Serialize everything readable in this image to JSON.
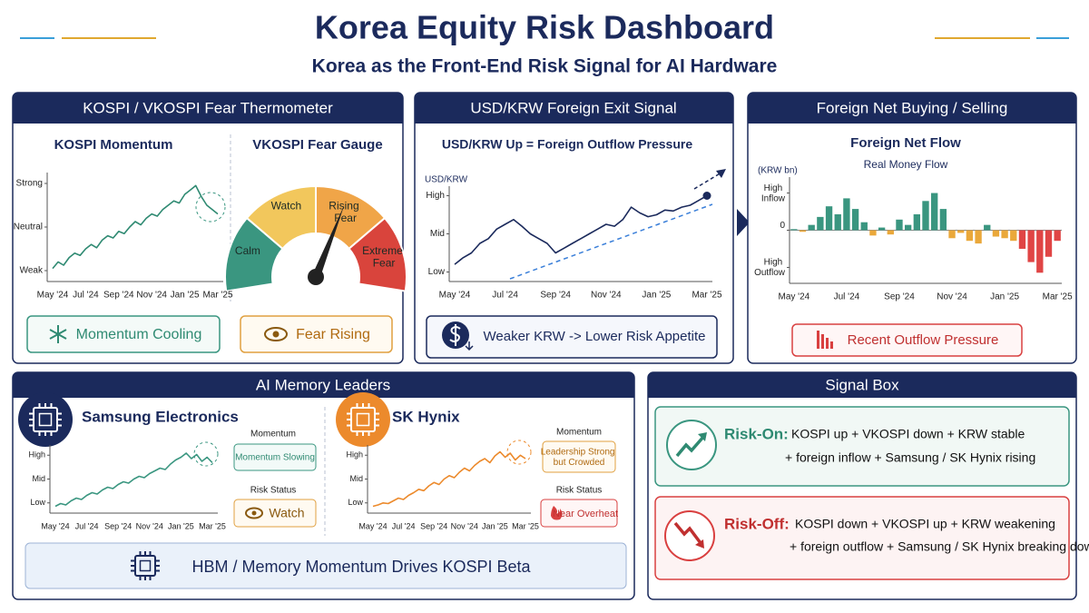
{
  "header": {
    "title": "Korea Equity Risk Dashboard",
    "subtitle": "Korea as the Front-End Risk Signal for AI Hardware"
  },
  "thermometer": {
    "header": "KOSPI / VKOSPI Fear Thermometer",
    "badge_momentum": "Momentum Cooling",
    "gauge": {
      "title": "VKOSPI Fear Gauge",
      "zones": [
        "Calm",
        "Watch",
        "Rising Fear",
        "Extreme Fear"
      ],
      "colors": [
        "#3a9680",
        "#f2c75c",
        "#f0a548",
        "#d9443c"
      ]
    },
    "badge_fear": "Fear Rising"
  },
  "fx": {
    "header": "USD/KRW Foreign Exit Signal",
    "badge": "Weaker KRW -> Lower Risk Appetite"
  },
  "flow": {
    "header": "Foreign Net Buying / Selling",
    "badge": "Recent Outflow Pressure"
  },
  "memory": {
    "header": "AI Memory Leaders",
    "samsung": {
      "momentum_label": "Momentum",
      "momentum": "Momentum Slowing",
      "risk_label": "Risk Status",
      "risk": "Watch"
    },
    "hynix": {
      "momentum_label": "Momentum",
      "momentum": "Leadership Strong but Crowded",
      "risk_label": "Risk Status",
      "risk": "Near Overheat"
    },
    "footer": "HBM / Memory Momentum Drives KOSPI Beta"
  },
  "signals": {
    "header": "Signal Box",
    "risk_on": {
      "label": "Risk-On:",
      "lines": [
        "KOSPI up + VKOSPI down + KRW stable",
        "+ foreign inflow + Samsung / SK Hynix rising"
      ]
    },
    "risk_off": {
      "label": "Risk-Off:",
      "lines": [
        "KOSPI down + VKOSPI up + KRW weakening",
        "+ foreign outflow + Samsung / SK Hynix breaking down"
      ]
    }
  },
  "chart_data": [
    {
      "type": "line",
      "title": "KOSPI Momentum",
      "color": "#2f8a72",
      "categories": [
        "May '24",
        null,
        null,
        null,
        null,
        null,
        "Jul '24",
        null,
        null,
        null,
        null,
        null,
        "Sep '24",
        null,
        null,
        null,
        null,
        null,
        "Nov '24",
        null,
        null,
        null,
        null,
        null,
        "Jan '25",
        null,
        null,
        null,
        null,
        null,
        "Mar '25"
      ],
      "values": [
        12,
        18,
        15,
        22,
        26,
        24,
        30,
        34,
        31,
        38,
        42,
        40,
        46,
        44,
        50,
        55,
        52,
        58,
        62,
        60,
        66,
        70,
        74,
        72,
        80,
        84,
        88,
        78,
        70,
        66,
        62
      ],
      "ylim": [
        0,
        100
      ],
      "yticks": [
        {
          "value": 10,
          "label": "Weak"
        },
        {
          "value": 50,
          "label": "Neutral"
        },
        {
          "value": 90,
          "label": "Strong"
        }
      ]
    },
    {
      "type": "line",
      "title": "USD/KRW Up = Foreign Outflow Pressure",
      "y_label": "USD/KRW",
      "color": "#1b2a5c",
      "categories": [
        "May '24",
        null,
        null,
        null,
        null,
        null,
        "Jul '24",
        null,
        null,
        null,
        null,
        null,
        "Sep '24",
        null,
        null,
        null,
        null,
        null,
        "Nov '24",
        null,
        null,
        null,
        null,
        null,
        "Jan '25",
        null,
        null,
        null,
        null,
        null,
        "Mar '25"
      ],
      "values": [
        18,
        25,
        30,
        40,
        45,
        55,
        60,
        65,
        58,
        50,
        45,
        40,
        30,
        35,
        40,
        45,
        50,
        55,
        60,
        58,
        65,
        78,
        72,
        68,
        70,
        75,
        74,
        78,
        80,
        85,
        90
      ],
      "ylim": [
        0,
        100
      ],
      "yticks": [
        {
          "value": 10,
          "label": "Low"
        },
        {
          "value": 50,
          "label": "Mid"
        },
        {
          "value": 90,
          "label": "High"
        }
      ]
    },
    {
      "type": "bar",
      "title": "Foreign Net Flow",
      "subtitle": "Real Money Flow",
      "y_label": "(KRW bn)",
      "categories": [
        "May '24",
        null,
        null,
        null,
        null,
        null,
        "Jul '24",
        null,
        null,
        null,
        null,
        null,
        "Sep '24",
        null,
        null,
        null,
        null,
        null,
        "Nov '24",
        null,
        null,
        null,
        null,
        null,
        "Jan '25",
        null,
        null,
        null,
        null,
        null,
        "Mar '25"
      ],
      "values": [
        2,
        -3,
        10,
        25,
        45,
        30,
        60,
        40,
        15,
        -10,
        5,
        -8,
        20,
        10,
        30,
        55,
        70,
        40,
        -15,
        -5,
        -20,
        -25,
        10,
        -12,
        -15,
        -20,
        -35,
        -60,
        -80,
        -50,
        -20
      ],
      "colors": [
        "#3a9680",
        "#eaa83a",
        "#3a9680",
        "#3a9680",
        "#3a9680",
        "#3a9680",
        "#3a9680",
        "#3a9680",
        "#3a9680",
        "#eaa83a",
        "#3a9680",
        "#eaa83a",
        "#3a9680",
        "#3a9680",
        "#3a9680",
        "#3a9680",
        "#3a9680",
        "#3a9680",
        "#eaa83a",
        "#eaa83a",
        "#eaa83a",
        "#eaa83a",
        "#3a9680",
        "#eaa83a",
        "#eaa83a",
        "#eaa83a",
        "#e04545",
        "#e04545",
        "#e04545",
        "#e04545",
        "#e04545"
      ],
      "ylim": [
        -100,
        100
      ],
      "yticks": [
        {
          "value": 70,
          "label": "High Inflow"
        },
        0,
        {
          "value": -70,
          "label": "High Outflow"
        }
      ]
    },
    {
      "type": "line",
      "title": "Samsung Electronics",
      "color": "#3a9680",
      "categories": [
        "May '24",
        null,
        null,
        null,
        null,
        null,
        "Jul '24",
        null,
        null,
        null,
        null,
        null,
        "Sep '24",
        null,
        null,
        null,
        null,
        null,
        "Nov '24",
        null,
        null,
        null,
        null,
        null,
        "Jan '25",
        null,
        null,
        null,
        null,
        null,
        "Mar '25"
      ],
      "values": [
        10,
        14,
        12,
        18,
        22,
        20,
        26,
        30,
        28,
        34,
        38,
        36,
        42,
        46,
        44,
        50,
        54,
        52,
        58,
        62,
        66,
        64,
        72,
        78,
        82,
        88,
        80,
        86,
        76,
        82,
        74
      ],
      "ylim": [
        0,
        100
      ],
      "yticks": [
        {
          "value": 15,
          "label": "Low"
        },
        {
          "value": 50,
          "label": "Mid"
        },
        {
          "value": 85,
          "label": "High"
        }
      ]
    },
    {
      "type": "line",
      "title": "SK Hynix",
      "color": "#ec8a2c",
      "categories": [
        "May '24",
        null,
        null,
        null,
        null,
        null,
        "Jul '24",
        null,
        null,
        null,
        null,
        null,
        "Sep '24",
        null,
        null,
        null,
        null,
        null,
        "Nov '24",
        null,
        null,
        null,
        null,
        null,
        "Jan '25",
        null,
        null,
        null,
        null,
        null,
        "Mar '25"
      ],
      "values": [
        10,
        12,
        15,
        14,
        18,
        22,
        20,
        26,
        30,
        35,
        33,
        40,
        45,
        42,
        50,
        55,
        52,
        60,
        66,
        62,
        70,
        76,
        80,
        74,
        84,
        90,
        82,
        88,
        78,
        85,
        80
      ],
      "ylim": [
        0,
        100
      ],
      "yticks": [
        {
          "value": 15,
          "label": "Low"
        },
        {
          "value": 50,
          "label": "Mid"
        },
        {
          "value": 85,
          "label": "High"
        }
      ]
    }
  ]
}
